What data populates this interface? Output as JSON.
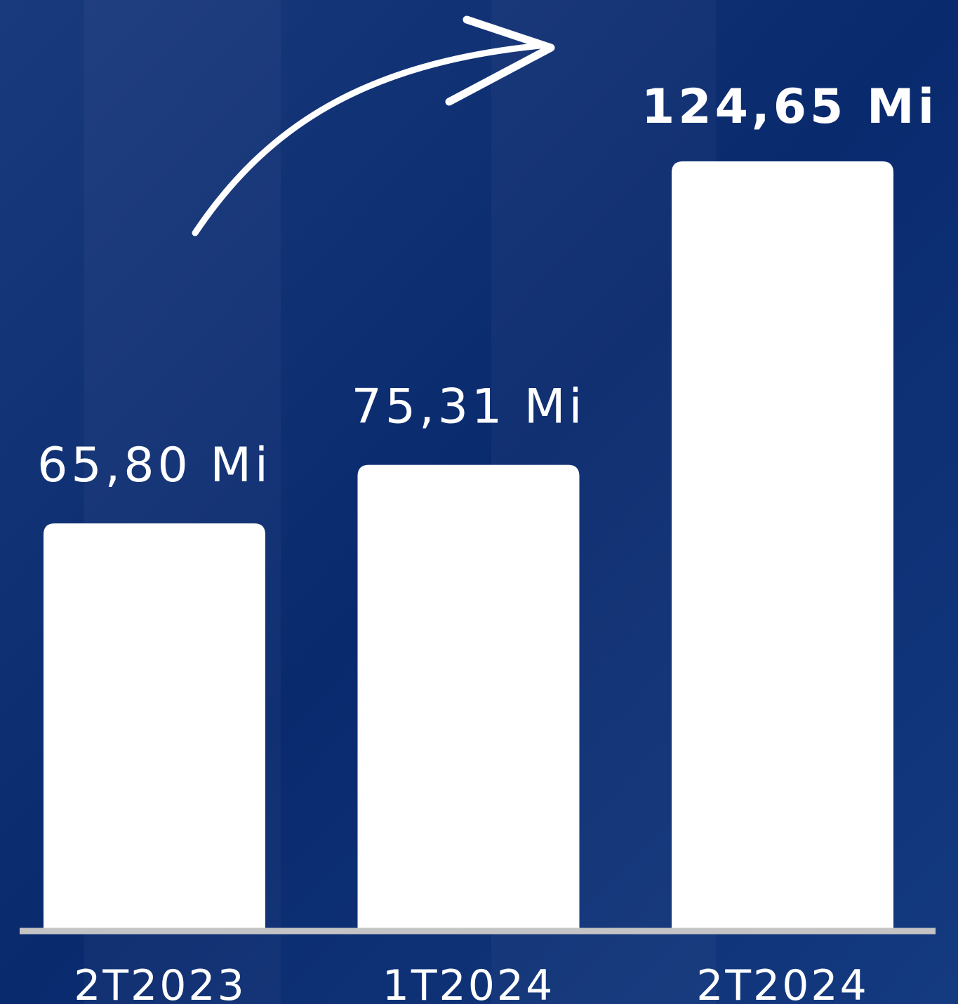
{
  "chart_data": {
    "type": "bar",
    "categories": [
      "2T2023",
      "1T2024",
      "2T2024"
    ],
    "values": [
      65.8,
      75.31,
      124.65
    ],
    "value_labels": [
      "65,80 Mi",
      "75,31 Mi",
      "124,65 Mi"
    ],
    "color": "#ffffff"
  }
}
